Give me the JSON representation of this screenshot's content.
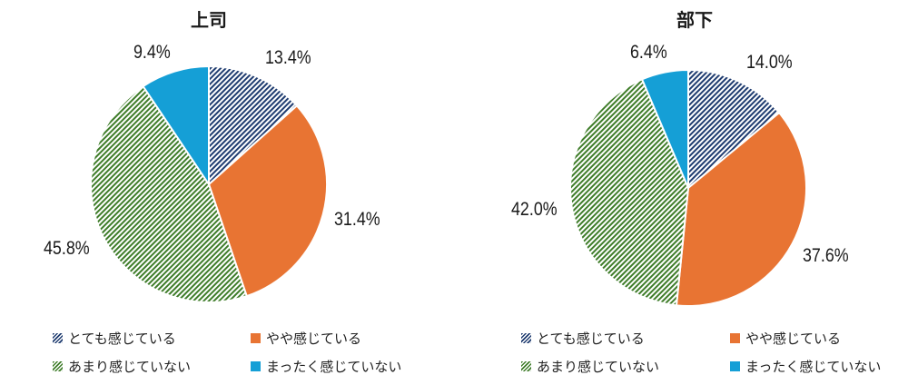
{
  "chart_data": [
    {
      "type": "pie",
      "title": "上司",
      "categories": [
        "とても感じている",
        "やや感じている",
        "あまり感じていない",
        "まったく感じていない"
      ],
      "values": [
        13.4,
        31.4,
        45.8,
        9.4
      ],
      "labels": [
        "13.4%",
        "31.4%",
        "45.8%",
        "9.4%"
      ],
      "legend_position": "bottom"
    },
    {
      "type": "pie",
      "title": "部下",
      "categories": [
        "とても感じている",
        "やや感じている",
        "あまり感じていない",
        "まったく感じていない"
      ],
      "values": [
        14.0,
        37.6,
        42.0,
        6.4
      ],
      "labels": [
        "14.0%",
        "37.6%",
        "42.0%",
        "6.4%"
      ],
      "legend_position": "bottom"
    }
  ],
  "colors": {
    "totemo": "#1f3c70",
    "yaya": "#e87433",
    "amari": "#3f7d2a",
    "mattaku": "#159fd6"
  },
  "legend": [
    "とても感じている",
    "やや感じている",
    "あまり感じていない",
    "まったく感じていない"
  ]
}
